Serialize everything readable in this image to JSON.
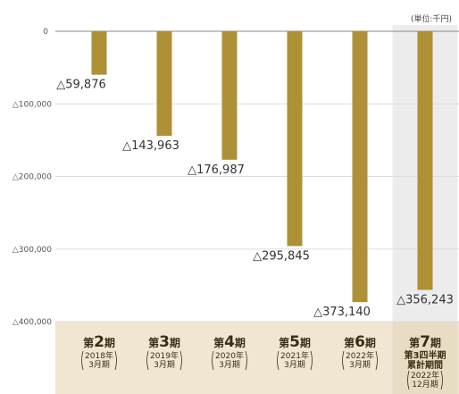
{
  "unit_label": "(単位:千円)",
  "chart_data": {
    "type": "bar",
    "ylim": [
      -400000,
      0
    ],
    "yticks": [
      {
        "value": 0,
        "label": "0"
      },
      {
        "value": -100000,
        "label": "△100,000"
      },
      {
        "value": -200000,
        "label": "△200,000"
      },
      {
        "value": -300000,
        "label": "△300,000"
      },
      {
        "value": -400000,
        "label": "△400,000"
      }
    ],
    "categories": [
      {
        "prefix": "第",
        "num": "2",
        "suffix": "期",
        "sub": [
          "2018年",
          "3月期"
        ]
      },
      {
        "prefix": "第",
        "num": "3",
        "suffix": "期",
        "sub": [
          "2019年",
          "3月期"
        ]
      },
      {
        "prefix": "第",
        "num": "4",
        "suffix": "期",
        "sub": [
          "2020年",
          "3月期"
        ]
      },
      {
        "prefix": "第",
        "num": "5",
        "suffix": "期",
        "sub": [
          "2021年",
          "3月期"
        ]
      },
      {
        "prefix": "第",
        "num": "6",
        "suffix": "期",
        "sub": [
          "2022年",
          "3月期"
        ]
      },
      {
        "prefix": "第",
        "num": "7",
        "suffix": "期",
        "extra": [
          "第3四半期",
          "累計期間"
        ],
        "sub": [
          "2022年",
          "12月期"
        ]
      }
    ],
    "values": [
      -59876,
      -143963,
      -176987,
      -295845,
      -373140,
      -356243
    ],
    "value_labels": [
      "△59,876",
      "△143,963",
      "△176,987",
      "△295,845",
      "△373,140",
      "△356,243"
    ],
    "grid": true,
    "colors": {
      "bar": "#ae9037",
      "category_band": "#f1e6d2",
      "highlight_column": "#ececec",
      "grid": "#dddddd"
    }
  }
}
